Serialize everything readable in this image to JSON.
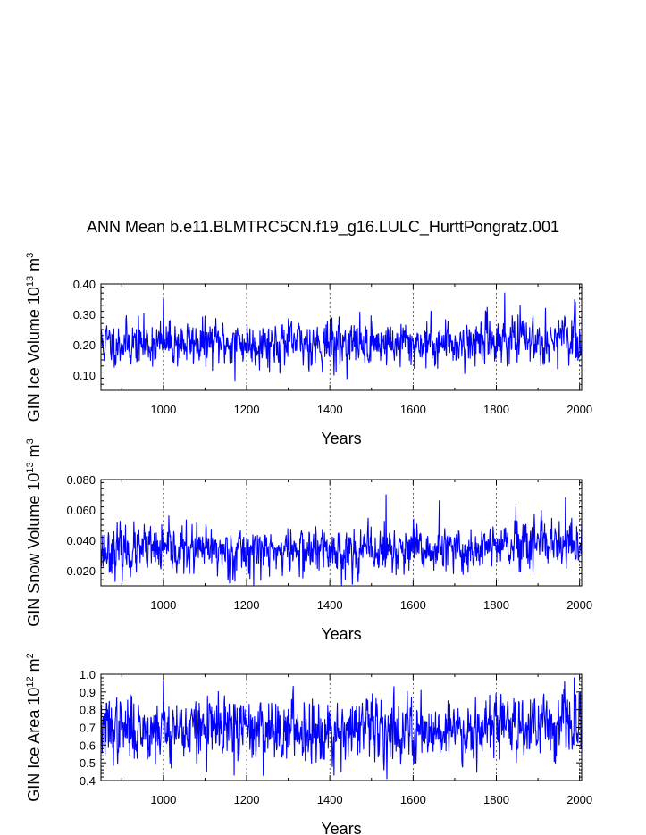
{
  "title": "ANN Mean b.e11.BLMTRC5CN.f19_g16.LULC_HurttPongratz.001",
  "chart_data": [
    {
      "type": "line",
      "ylabel": "GIN Ice Volume 10",
      "ylabel_exp": "13",
      "ylabel_unit": " m",
      "ylabel_unit_exp": "3",
      "xlabel": "Years",
      "xlim": [
        850,
        2005
      ],
      "ylim": [
        0.05,
        0.4
      ],
      "xticks": [
        1000,
        1200,
        1400,
        1600,
        1800,
        2000
      ],
      "xtick_labels": [
        "1000",
        "1200",
        "1400",
        "1600",
        "1800",
        "2000"
      ],
      "yticks": [
        0.1,
        0.2,
        0.3,
        0.4
      ],
      "ytick_labels": [
        "0.10",
        "0.20",
        "0.30",
        "0.40"
      ],
      "series": [
        {
          "name": "GIN Ice Volume",
          "color": "#0000ff",
          "mean": 0.205,
          "sd": 0.036,
          "seed": 11,
          "anchors": [
            [
              1000,
              0.35
            ],
            [
              1172,
              0.08
            ],
            [
              1410,
              0.1
            ],
            [
              1820,
              0.37
            ],
            [
              1990,
              0.34
            ],
            [
              2004,
              0.17
            ]
          ]
        }
      ]
    },
    {
      "type": "line",
      "ylabel": "GIN Snow Volume 10",
      "ylabel_exp": "13",
      "ylabel_unit": " m",
      "ylabel_unit_exp": "3",
      "xlabel": "Years",
      "xlim": [
        850,
        2005
      ],
      "ylim": [
        0.01,
        0.08
      ],
      "xticks": [
        1000,
        1200,
        1400,
        1600,
        1800,
        2000
      ],
      "xtick_labels": [
        "1000",
        "1200",
        "1400",
        "1600",
        "1800",
        "2000"
      ],
      "yticks": [
        0.02,
        0.04,
        0.06,
        0.08
      ],
      "ytick_labels": [
        "0.020",
        "0.040",
        "0.060",
        "0.080"
      ],
      "series": [
        {
          "name": "GIN Snow Volume",
          "color": "#0000ff",
          "mean": 0.033,
          "sd": 0.0075,
          "seed": 23,
          "anchors": [
            [
              1535,
              0.07
            ],
            [
              1663,
              0.066
            ],
            [
              1966,
              0.068
            ],
            [
              1172,
              0.013
            ]
          ]
        }
      ]
    },
    {
      "type": "line",
      "ylabel": "GIN Ice Area 10",
      "ylabel_exp": "12",
      "ylabel_unit": " m",
      "ylabel_unit_exp": "2",
      "xlabel": "Years",
      "xlim": [
        850,
        2005
      ],
      "ylim": [
        0.4,
        1.0
      ],
      "xticks": [
        1000,
        1200,
        1400,
        1600,
        1800,
        2000
      ],
      "xtick_labels": [
        "1000",
        "1200",
        "1400",
        "1600",
        "1800",
        "2000"
      ],
      "yticks": [
        0.4,
        0.5,
        0.6,
        0.7,
        0.8,
        0.9,
        1.0
      ],
      "ytick_labels": [
        "0.4",
        "0.5",
        "0.6",
        "0.7",
        "0.8",
        "0.9",
        "1.0"
      ],
      "series": [
        {
          "name": "GIN Ice Area",
          "color": "#0000ff",
          "mean": 0.69,
          "sd": 0.085,
          "seed": 37,
          "anchors": [
            [
              1000,
              0.96
            ],
            [
              1170,
              0.43
            ],
            [
              1410,
              0.43
            ],
            [
              1987,
              0.98
            ],
            [
              2003,
              0.58
            ]
          ]
        }
      ]
    }
  ]
}
